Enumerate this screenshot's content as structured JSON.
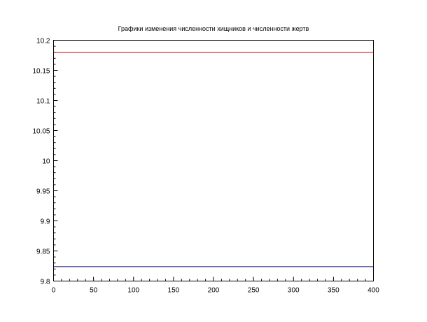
{
  "chart_data": {
    "type": "line",
    "title": "Графики изменения численности хищников и численности жертв",
    "xlabel": "",
    "ylabel": "",
    "xlim": [
      0,
      400
    ],
    "ylim": [
      9.8,
      10.2
    ],
    "x_ticks": [
      "0",
      "50",
      "100",
      "150",
      "200",
      "250",
      "300",
      "350",
      "400"
    ],
    "y_ticks": [
      "9.8",
      "9.85",
      "9.9",
      "9.95",
      "10",
      "10.05",
      "10.1",
      "10.15",
      "10.2"
    ],
    "grid": false,
    "series": [
      {
        "color": "#cc0000",
        "x": [
          0,
          400
        ],
        "values": [
          10.18,
          10.18
        ]
      },
      {
        "color": "#000080",
        "x": [
          0,
          400
        ],
        "values": [
          9.824,
          9.824
        ]
      }
    ]
  }
}
